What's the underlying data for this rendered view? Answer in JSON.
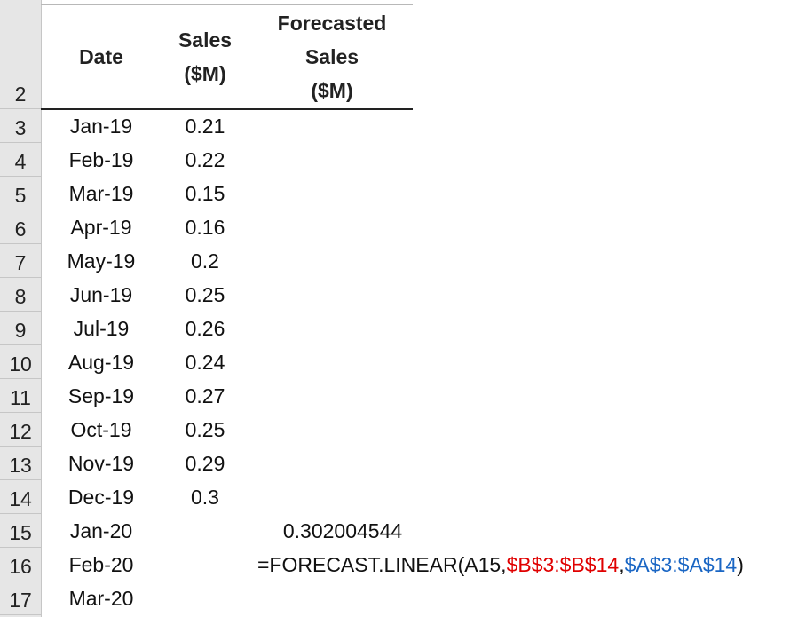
{
  "row_headers": [
    "2",
    "3",
    "4",
    "5",
    "6",
    "7",
    "8",
    "9",
    "10",
    "11",
    "12",
    "13",
    "14",
    "15",
    "16",
    "17"
  ],
  "columns": {
    "date": "Date",
    "sales_line1": "Sales",
    "sales_line2": "($M)",
    "forecast_line1": "Forecasted",
    "forecast_line2": "Sales",
    "forecast_line3": "($M)"
  },
  "rows": [
    {
      "date": "Jan-19",
      "sales": "0.21"
    },
    {
      "date": "Feb-19",
      "sales": "0.22"
    },
    {
      "date": "Mar-19",
      "sales": "0.15"
    },
    {
      "date": "Apr-19",
      "sales": "0.16"
    },
    {
      "date": "May-19",
      "sales": "0.2"
    },
    {
      "date": "Jun-19",
      "sales": "0.25"
    },
    {
      "date": "Jul-19",
      "sales": "0.26"
    },
    {
      "date": "Aug-19",
      "sales": "0.24"
    },
    {
      "date": "Sep-19",
      "sales": "0.27"
    },
    {
      "date": "Oct-19",
      "sales": "0.25"
    },
    {
      "date": "Nov-19",
      "sales": "0.29"
    },
    {
      "date": "Dec-19",
      "sales": "0.3"
    },
    {
      "date": "Jan-20",
      "sales": ""
    },
    {
      "date": "Feb-20",
      "sales": ""
    },
    {
      "date": "Mar-20",
      "sales": ""
    }
  ],
  "forecast_value": "0.302004544",
  "formula": {
    "prefix": "=FORECAST.LINEAR(A15,",
    "ref_known_y": "$B$3:$B$14",
    "separator": ",",
    "ref_known_x": "$A$3:$A$14",
    "suffix": ")"
  },
  "colors": {
    "known_y_ref": "#e00000",
    "known_x_ref": "#1a66c4"
  }
}
